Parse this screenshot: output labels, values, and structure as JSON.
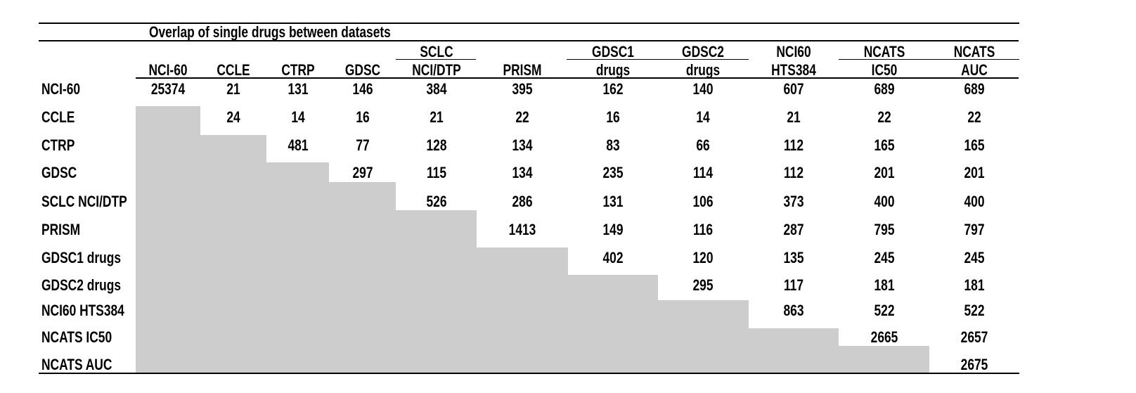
{
  "title": "Overlap of single drugs between datasets",
  "columns": [
    {
      "id": "nci-60",
      "line1": "",
      "line2": "NCI-60"
    },
    {
      "id": "ccle",
      "line1": "",
      "line2": "CCLE"
    },
    {
      "id": "ctrp",
      "line1": "",
      "line2": "CTRP"
    },
    {
      "id": "gdsc",
      "line1": "",
      "line2": "GDSC"
    },
    {
      "id": "sclc-nci-dtp",
      "line1": "SCLC",
      "line2": "NCI/DTP"
    },
    {
      "id": "prism",
      "line1": "",
      "line2": "PRISM"
    },
    {
      "id": "gdsc1-drugs",
      "line1": "GDSC1",
      "line2": "drugs"
    },
    {
      "id": "gdsc2-drugs",
      "line1": "GDSC2",
      "line2": "drugs"
    },
    {
      "id": "nci60-hts384",
      "line1": "NCI60",
      "line2": "HTS384"
    },
    {
      "id": "ncats-ic50",
      "line1": "NCATS",
      "line2": "IC50"
    },
    {
      "id": "ncats-auc",
      "line1": "NCATS",
      "line2": "AUC"
    }
  ],
  "rows": [
    {
      "id": "nci-60",
      "label": "NCI-60",
      "values": [
        25374,
        21,
        131,
        146,
        384,
        395,
        162,
        140,
        607,
        689,
        689
      ]
    },
    {
      "id": "ccle",
      "label": "CCLE",
      "values": [
        null,
        24,
        14,
        16,
        21,
        22,
        16,
        14,
        21,
        22,
        22
      ]
    },
    {
      "id": "ctrp",
      "label": "CTRP",
      "values": [
        null,
        null,
        481,
        77,
        128,
        134,
        83,
        66,
        112,
        165,
        165
      ]
    },
    {
      "id": "gdsc",
      "label": "GDSC",
      "values": [
        null,
        null,
        null,
        297,
        115,
        134,
        235,
        114,
        112,
        201,
        201
      ]
    },
    {
      "id": "sclc-nci-dtp",
      "label": "SCLC NCI/DTP",
      "values": [
        null,
        null,
        null,
        null,
        526,
        286,
        131,
        106,
        373,
        400,
        400
      ]
    },
    {
      "id": "prism",
      "label": "PRISM",
      "values": [
        null,
        null,
        null,
        null,
        null,
        1413,
        149,
        116,
        287,
        795,
        797
      ]
    },
    {
      "id": "gdsc1-drugs",
      "label": "GDSC1 drugs",
      "values": [
        null,
        null,
        null,
        null,
        null,
        null,
        402,
        120,
        135,
        245,
        245
      ]
    },
    {
      "id": "gdsc2-drugs",
      "label": "GDSC2 drugs",
      "values": [
        null,
        null,
        null,
        null,
        null,
        null,
        null,
        295,
        117,
        181,
        181
      ]
    },
    {
      "id": "nci60-hts384",
      "label": "NCI60 HTS384",
      "values": [
        null,
        null,
        null,
        null,
        null,
        null,
        null,
        null,
        863,
        522,
        522
      ]
    },
    {
      "id": "ncats-ic50",
      "label": "NCATS IC50",
      "values": [
        null,
        null,
        null,
        null,
        null,
        null,
        null,
        null,
        null,
        2665,
        2657
      ]
    },
    {
      "id": "ncats-auc",
      "label": "NCATS AUC",
      "values": [
        null,
        null,
        null,
        null,
        null,
        null,
        null,
        null,
        null,
        null,
        2675
      ]
    }
  ],
  "legend": {
    "shaded_region_meaning": "lower triangle (duplicate of upper triangle) shown as gray shading"
  },
  "colors": {
    "background": "#ffffff",
    "shade": "#cecdcd",
    "rule": "#000000",
    "text": "#000000"
  }
}
